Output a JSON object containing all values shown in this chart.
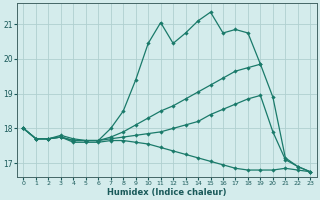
{
  "xlabel": "Humidex (Indice chaleur)",
  "bg_color": "#d4ecec",
  "grid_color": "#b0d0d0",
  "line_color": "#1a7a6a",
  "xlim": [
    -0.5,
    23.5
  ],
  "ylim": [
    16.6,
    21.6
  ],
  "yticks": [
    17,
    18,
    19,
    20,
    21
  ],
  "xticks": [
    0,
    1,
    2,
    3,
    4,
    5,
    6,
    7,
    8,
    9,
    10,
    11,
    12,
    13,
    14,
    15,
    16,
    17,
    18,
    19,
    20,
    21,
    22,
    23
  ],
  "line1_x": [
    0,
    1,
    2,
    3,
    4,
    5,
    6,
    7,
    8,
    9,
    10,
    11,
    12,
    13,
    14,
    15,
    16,
    17,
    18,
    19
  ],
  "line1_y": [
    18.0,
    17.7,
    17.7,
    17.8,
    17.7,
    17.65,
    17.65,
    18.0,
    18.5,
    19.4,
    20.45,
    21.05,
    20.45,
    20.75,
    21.1,
    21.35,
    20.75,
    20.85,
    20.75,
    19.85
  ],
  "line2_x": [
    0,
    1,
    2,
    3,
    4,
    5,
    6,
    7,
    8,
    9,
    10,
    11,
    12,
    13,
    14,
    15,
    16,
    17,
    18,
    19,
    20,
    21,
    22,
    23
  ],
  "line2_y": [
    18.0,
    17.7,
    17.7,
    17.75,
    17.65,
    17.65,
    17.65,
    17.75,
    17.9,
    18.1,
    18.3,
    18.5,
    18.65,
    18.85,
    19.05,
    19.25,
    19.45,
    19.65,
    19.75,
    19.85,
    18.9,
    17.15,
    16.9,
    16.75
  ],
  "line3_x": [
    0,
    1,
    2,
    3,
    4,
    5,
    6,
    7,
    8,
    9,
    10,
    11,
    12,
    13,
    14,
    15,
    16,
    17,
    18,
    19,
    20,
    21,
    22,
    23
  ],
  "line3_y": [
    18.0,
    17.7,
    17.7,
    17.75,
    17.65,
    17.65,
    17.65,
    17.7,
    17.75,
    17.8,
    17.85,
    17.9,
    18.0,
    18.1,
    18.2,
    18.4,
    18.55,
    18.7,
    18.85,
    18.95,
    17.9,
    17.1,
    16.9,
    16.75
  ],
  "line4_x": [
    0,
    1,
    2,
    3,
    4,
    5,
    6,
    7,
    8,
    9,
    10,
    11,
    12,
    13,
    14,
    15,
    16,
    17,
    18,
    19,
    20,
    21,
    22,
    23
  ],
  "line4_y": [
    18.0,
    17.7,
    17.7,
    17.75,
    17.6,
    17.6,
    17.6,
    17.65,
    17.65,
    17.6,
    17.55,
    17.45,
    17.35,
    17.25,
    17.15,
    17.05,
    16.95,
    16.85,
    16.8,
    16.8,
    16.8,
    16.85,
    16.8,
    16.75
  ]
}
